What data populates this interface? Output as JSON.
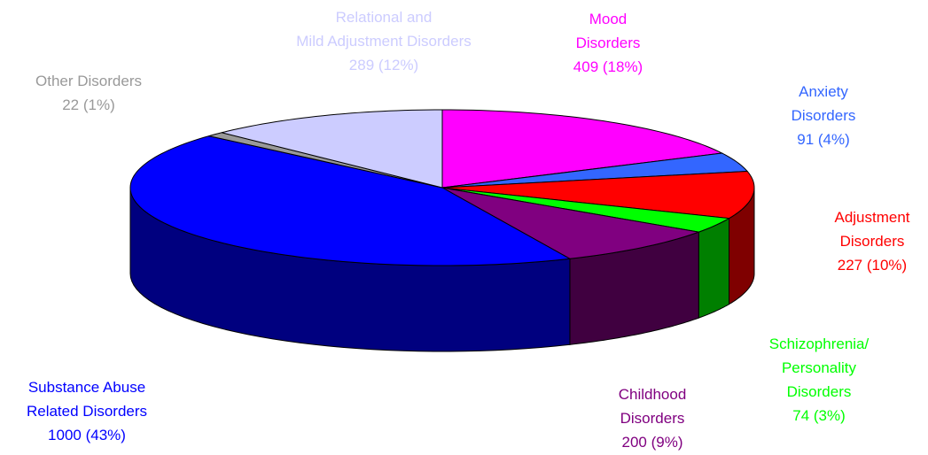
{
  "chart_data": {
    "type": "pie",
    "categories": [
      "Mood\nDisorders",
      "Anxiety\nDisorders",
      "Adjustment\nDisorders",
      "Schizophrenia/\nPersonality\nDisorders",
      "Childhood\nDisorders",
      "Substance Abuse\nRelated Disorders",
      "Other Disorders",
      "Relational and\nMild Adjustment Disorders"
    ],
    "values": [
      409,
      91,
      227,
      74,
      200,
      1000,
      22,
      289
    ],
    "value_labels": [
      "409 (18%)",
      "91 (4%)",
      "227 (10%)",
      "74 (3%)",
      "200 (9%)",
      "1000 (43%)",
      "22 (1%)",
      "289 (12%)"
    ],
    "colors": [
      "#ff00ff",
      "#3366ff",
      "#ff0000",
      "#00ff00",
      "#800080",
      "#0000ff",
      "#999999",
      "#ccccff"
    ]
  }
}
